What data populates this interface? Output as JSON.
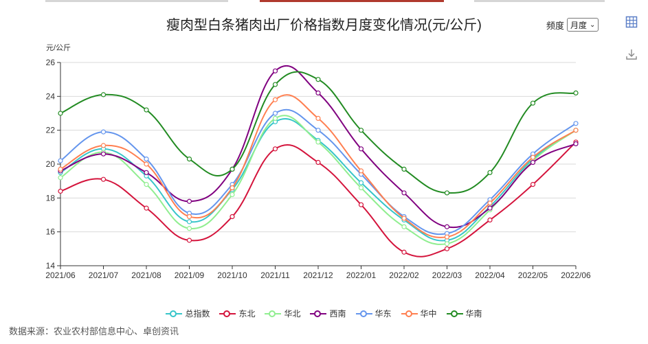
{
  "header": {
    "title": "瘦肉型白条猪肉出厂价格指数月度变化情况(元/公斤)",
    "freq_label": "频度",
    "freq_value": "月度"
  },
  "icons": {
    "table": "table-view-icon",
    "download": "download-icon"
  },
  "source": "数据来源：农业农村部信息中心、卓创资讯",
  "chart_data": {
    "type": "line",
    "title": "瘦肉型白条猪肉出厂价格指数月度变化情况(元/公斤)",
    "ylabel": "元/公斤",
    "xlabel": "",
    "ylim": [
      14,
      26
    ],
    "yticks": [
      14,
      16,
      18,
      20,
      22,
      24,
      26
    ],
    "grid": true,
    "legend_position": "bottom",
    "categories": [
      "2021/06",
      "2021/07",
      "2021/08",
      "2021/09",
      "2021/10",
      "2021/11",
      "2021/12",
      "2022/01",
      "2022/02",
      "2022/03",
      "2022/04",
      "2022/05",
      "2022/06"
    ],
    "series": [
      {
        "name": "总指数",
        "color": "#36c5c9",
        "values": [
          19.5,
          20.9,
          19.3,
          16.6,
          18.5,
          22.5,
          21.4,
          18.9,
          16.7,
          15.5,
          17.5,
          20.3,
          22.0
        ]
      },
      {
        "name": "东北",
        "color": "#d4143c",
        "values": [
          18.4,
          19.1,
          17.4,
          15.5,
          16.9,
          20.9,
          20.1,
          17.6,
          14.8,
          15.0,
          16.7,
          18.8,
          21.3
        ]
      },
      {
        "name": "华北",
        "color": "#90ee90",
        "values": [
          19.2,
          20.7,
          18.8,
          16.2,
          18.2,
          22.7,
          21.3,
          18.6,
          16.3,
          15.3,
          17.3,
          20.2,
          22.0
        ]
      },
      {
        "name": "西南",
        "color": "#800080",
        "values": [
          19.6,
          20.6,
          19.5,
          17.8,
          19.7,
          25.5,
          24.2,
          20.9,
          18.3,
          16.3,
          17.4,
          20.1,
          21.2
        ]
      },
      {
        "name": "华东",
        "color": "#6495ed",
        "values": [
          20.2,
          21.9,
          20.3,
          17.1,
          18.8,
          23.0,
          22.0,
          19.4,
          16.9,
          15.9,
          17.9,
          20.6,
          22.4
        ]
      },
      {
        "name": "华中",
        "color": "#ff7f50",
        "values": [
          19.7,
          21.1,
          20.0,
          16.9,
          18.6,
          23.8,
          22.7,
          19.6,
          16.8,
          15.7,
          17.7,
          20.4,
          22.0
        ]
      },
      {
        "name": "华南",
        "color": "#228b22",
        "values": [
          23.0,
          24.1,
          23.2,
          20.3,
          19.7,
          24.7,
          25.0,
          22.0,
          19.7,
          18.3,
          19.5,
          23.6,
          24.2
        ]
      }
    ]
  }
}
